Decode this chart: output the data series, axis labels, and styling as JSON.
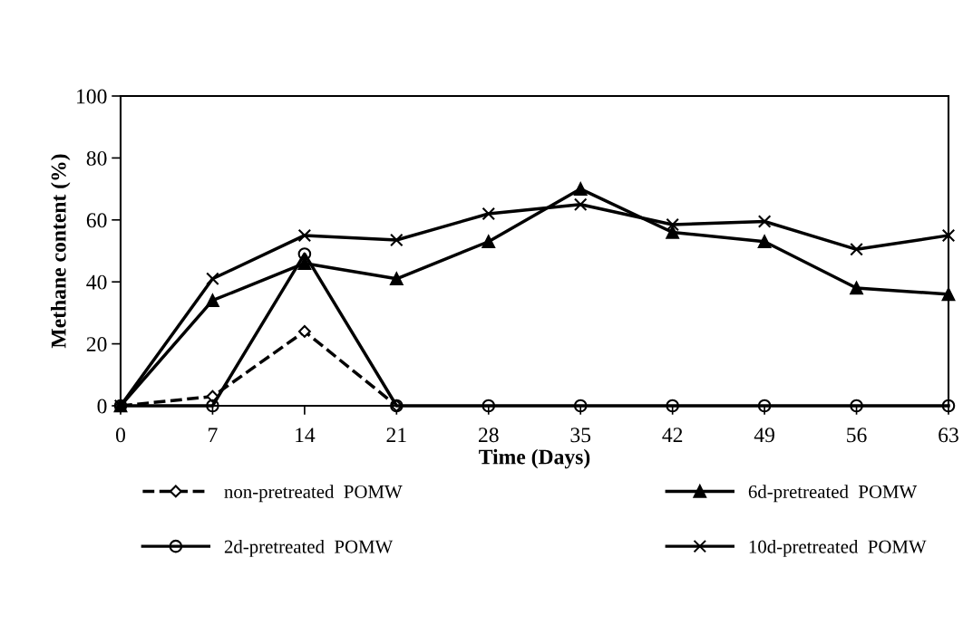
{
  "chart_data": {
    "type": "line",
    "xlabel": "Time (Days)",
    "ylabel": "Methane content (%)",
    "x": [
      0,
      7,
      14,
      21,
      28,
      35,
      42,
      49,
      56,
      63
    ],
    "xlim": [
      0,
      63
    ],
    "xticks": [
      0,
      7,
      14,
      21,
      28,
      35,
      42,
      49,
      56,
      63
    ],
    "ylim": [
      0,
      100
    ],
    "yticks": [
      0,
      20,
      40,
      60,
      80,
      100
    ],
    "grid": false,
    "legend": "bottom",
    "series": [
      {
        "name": "non-pretreated  POMW",
        "color": "#000000",
        "marker": "diamond",
        "line_style": "dashed",
        "values": [
          0,
          3,
          24,
          0,
          null,
          null,
          null,
          null,
          null,
          null
        ]
      },
      {
        "name": "2d-pretreated  POMW",
        "color": "#000000",
        "marker": "circle",
        "line_style": "solid",
        "values": [
          0,
          0,
          49,
          0,
          0,
          0,
          0,
          0,
          0,
          0
        ]
      },
      {
        "name": "6d-pretreated  POMW",
        "color": "#000000",
        "marker": "triangle",
        "line_style": "solid",
        "values": [
          0,
          34,
          46,
          41,
          53,
          70,
          56,
          53,
          38,
          36
        ]
      },
      {
        "name": "10d-pretreated  POMW",
        "color": "#000000",
        "marker": "cross",
        "line_style": "solid",
        "values": [
          0,
          41,
          55,
          53.5,
          62,
          65,
          58.5,
          59.5,
          50.5,
          55
        ]
      }
    ]
  }
}
